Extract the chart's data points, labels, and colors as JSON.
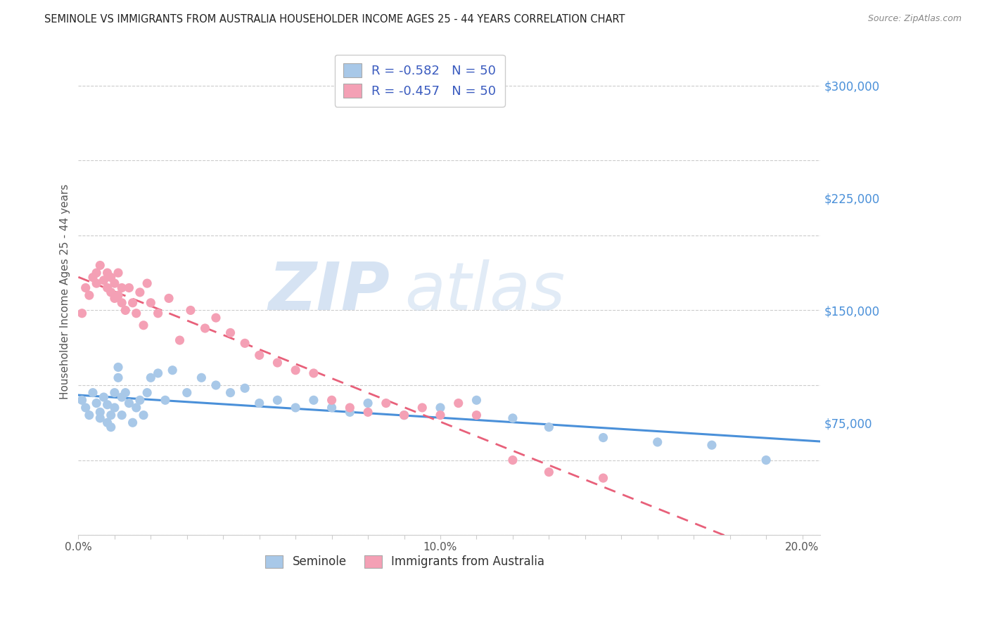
{
  "title": "SEMINOLE VS IMMIGRANTS FROM AUSTRALIA HOUSEHOLDER INCOME AGES 25 - 44 YEARS CORRELATION CHART",
  "source": "Source: ZipAtlas.com",
  "ylabel": "Householder Income Ages 25 - 44 years",
  "watermark_zip": "ZIP",
  "watermark_atlas": "atlas",
  "xlim": [
    0.0,
    0.205
  ],
  "ylim": [
    0,
    325000
  ],
  "yticks": [
    75000,
    150000,
    225000,
    300000
  ],
  "ytick_labels": [
    "$75,000",
    "$150,000",
    "$225,000",
    "$300,000"
  ],
  "series1_name": "Seminole",
  "series2_name": "Immigrants from Australia",
  "series1_scatter_color": "#a8c8e8",
  "series2_scatter_color": "#f4a0b5",
  "series1_line_color": "#4a90d9",
  "series2_line_color": "#e8607a",
  "series1_R": -0.582,
  "series1_N": 50,
  "series2_R": -0.457,
  "series2_N": 50,
  "blue_text": "#3a5bbf",
  "title_color": "#222222",
  "ylabel_color": "#555555",
  "source_color": "#888888",
  "grid_color": "#cccccc",
  "bg_color": "#ffffff",
  "right_tick_color": "#4a90d9",
  "seminole_x": [
    0.001,
    0.002,
    0.003,
    0.004,
    0.005,
    0.006,
    0.006,
    0.007,
    0.008,
    0.008,
    0.009,
    0.009,
    0.01,
    0.01,
    0.011,
    0.011,
    0.012,
    0.012,
    0.013,
    0.014,
    0.015,
    0.016,
    0.017,
    0.018,
    0.019,
    0.02,
    0.022,
    0.024,
    0.026,
    0.03,
    0.034,
    0.038,
    0.042,
    0.046,
    0.05,
    0.055,
    0.06,
    0.065,
    0.07,
    0.075,
    0.08,
    0.09,
    0.1,
    0.11,
    0.12,
    0.13,
    0.145,
    0.16,
    0.175,
    0.19
  ],
  "seminole_y": [
    90000,
    85000,
    80000,
    95000,
    88000,
    82000,
    78000,
    92000,
    75000,
    87000,
    80000,
    72000,
    95000,
    85000,
    105000,
    112000,
    92000,
    80000,
    95000,
    88000,
    75000,
    85000,
    90000,
    80000,
    95000,
    105000,
    108000,
    90000,
    110000,
    95000,
    105000,
    100000,
    95000,
    98000,
    88000,
    90000,
    85000,
    90000,
    85000,
    82000,
    88000,
    80000,
    85000,
    90000,
    78000,
    72000,
    65000,
    62000,
    60000,
    50000
  ],
  "australia_x": [
    0.001,
    0.002,
    0.003,
    0.004,
    0.005,
    0.005,
    0.006,
    0.007,
    0.008,
    0.008,
    0.009,
    0.009,
    0.01,
    0.01,
    0.011,
    0.011,
    0.012,
    0.012,
    0.013,
    0.014,
    0.015,
    0.016,
    0.017,
    0.018,
    0.019,
    0.02,
    0.022,
    0.025,
    0.028,
    0.031,
    0.035,
    0.038,
    0.042,
    0.046,
    0.05,
    0.055,
    0.06,
    0.065,
    0.07,
    0.075,
    0.08,
    0.085,
    0.09,
    0.095,
    0.1,
    0.105,
    0.11,
    0.12,
    0.13,
    0.145
  ],
  "australia_y": [
    148000,
    165000,
    160000,
    172000,
    168000,
    175000,
    180000,
    170000,
    165000,
    175000,
    162000,
    172000,
    158000,
    168000,
    175000,
    160000,
    155000,
    165000,
    150000,
    165000,
    155000,
    148000,
    162000,
    140000,
    168000,
    155000,
    148000,
    158000,
    130000,
    150000,
    138000,
    145000,
    135000,
    128000,
    120000,
    115000,
    110000,
    108000,
    90000,
    85000,
    82000,
    88000,
    80000,
    85000,
    80000,
    88000,
    80000,
    50000,
    42000,
    38000
  ]
}
